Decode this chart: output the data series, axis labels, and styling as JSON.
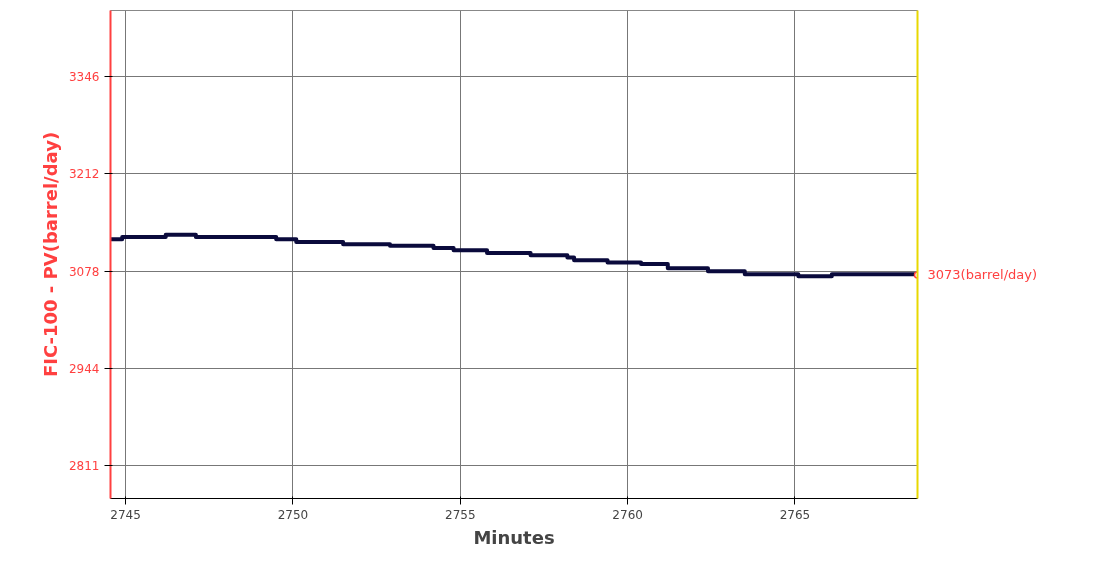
{
  "chart_data": {
    "type": "step",
    "xlabel": "Minutes",
    "ylabel": "FIC-100 - PV(barrel/day)",
    "x": [
      2744.55,
      2744.9,
      2746.2,
      2747.1,
      2749.5,
      2750.1,
      2751.5,
      2752.9,
      2754.2,
      2754.8,
      2755.8,
      2757.1,
      2758.2,
      2758.4,
      2759.4,
      2760.4,
      2761.2,
      2762.4,
      2763.5,
      2765.1,
      2766.1,
      2768.66
    ],
    "series": [
      {
        "color": "#0a0a3c",
        "values": [
          3122,
          3125,
          3128,
          3125,
          3122,
          3118,
          3115,
          3113,
          3110,
          3107,
          3103,
          3100,
          3097,
          3093,
          3090,
          3088,
          3082,
          3078,
          3074,
          3071,
          3074,
          3073
        ]
      }
    ],
    "xlim": [
      2744.55,
      2768.66
    ],
    "ylim": [
      2766,
      3436
    ],
    "xticks": [
      2745,
      2750,
      2755,
      2760,
      2765
    ],
    "yticks": [
      2811,
      2944,
      3078,
      3212,
      3346
    ],
    "grid": true,
    "annotations": [
      {
        "text": "3073(barrel/day)",
        "x": 2768.66,
        "y": 3073
      }
    ]
  }
}
